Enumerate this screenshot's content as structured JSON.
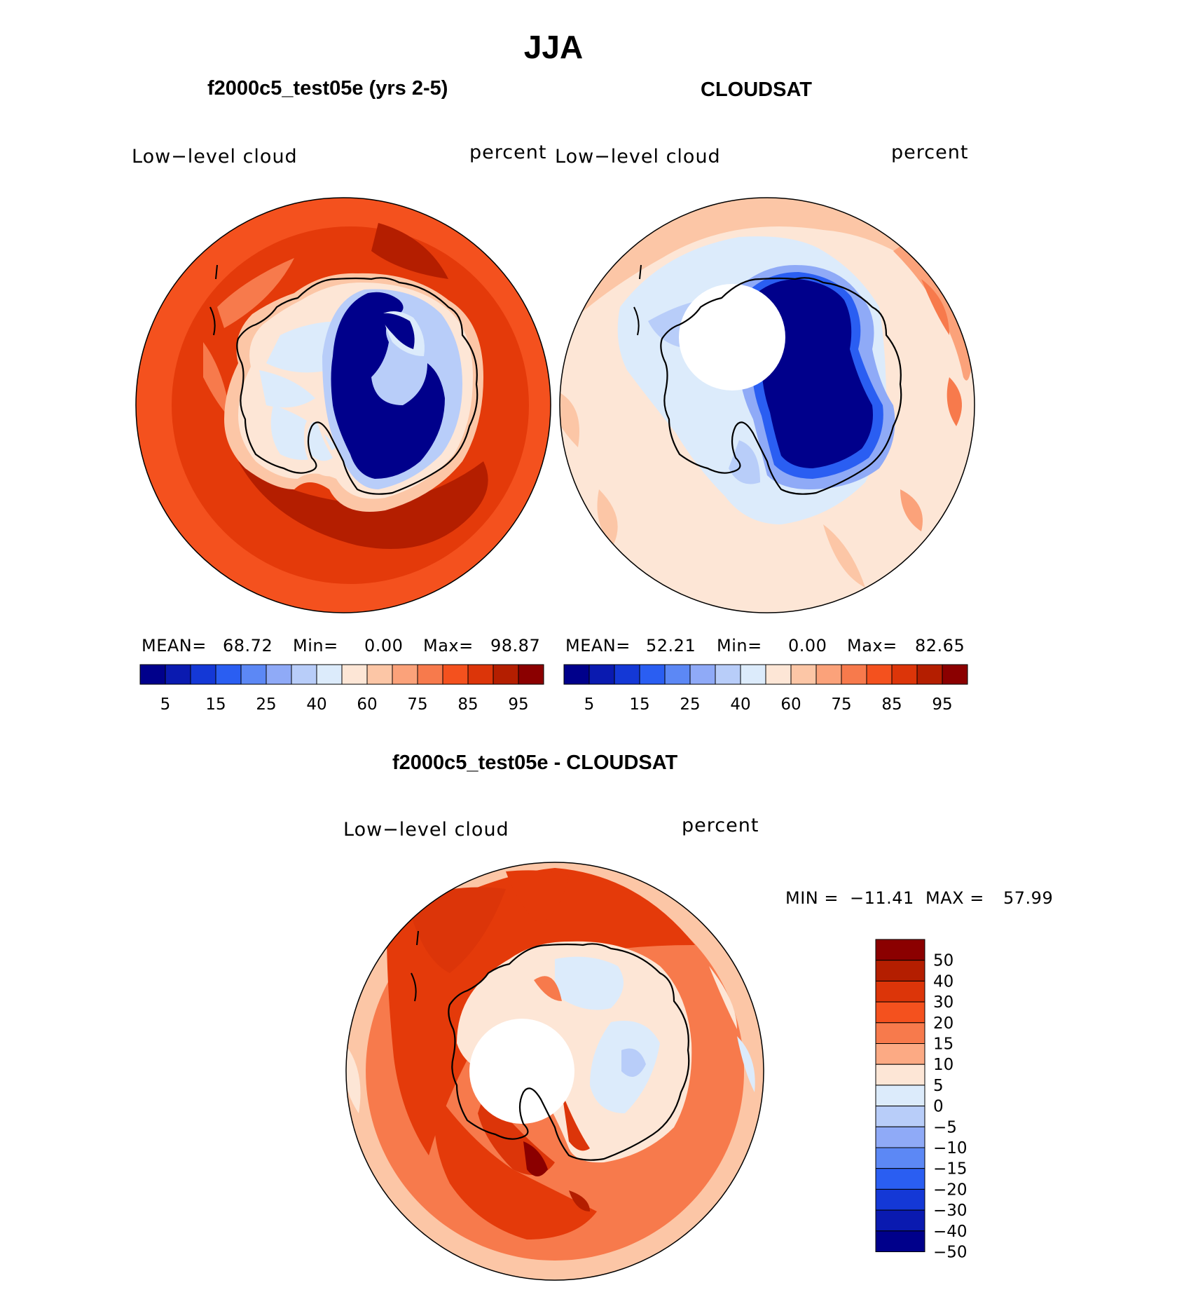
{
  "season": "JJA",
  "panels": [
    {
      "title": "f2000c5_test05e (yrs 2-5)",
      "left_label": "Low−level cloud",
      "right_label": "percent",
      "stats": {
        "mean_label": "MEAN=",
        "mean": "68.72",
        "min_label": "Min=",
        "min": "0.00",
        "max_label": "Max=",
        "max": "98.87"
      },
      "missing_pole": false
    },
    {
      "title": "CLOUDSAT",
      "left_label": "Low−level cloud",
      "right_label": "percent",
      "stats": {
        "mean_label": "MEAN=",
        "mean": "52.21",
        "min_label": "Min=",
        "min": "0.00",
        "max_label": "Max=",
        "max": "82.65"
      },
      "missing_pole": true
    }
  ],
  "colorbar_top": {
    "colors": [
      "#00008b",
      "#0a1ab0",
      "#1438d6",
      "#2a5ef2",
      "#5c88f5",
      "#8faaf7",
      "#b8cdf9",
      "#dcebfb",
      "#fde6d6",
      "#fcc6a6",
      "#fba27a",
      "#f77a4c",
      "#f4511e",
      "#dc3509",
      "#b41e00",
      "#8b0000"
    ],
    "labels": [
      "5",
      "15",
      "25",
      "40",
      "60",
      "75",
      "85",
      "95"
    ]
  },
  "diff_panel": {
    "title": "f2000c5_test05e - CLOUDSAT",
    "left_label": "Low−level cloud",
    "right_label": "percent",
    "minmax": {
      "min_label": "MIN =",
      "min": "−11.41",
      "max_label": "MAX =",
      "max": "57.99"
    },
    "missing_pole": true
  },
  "colorbar_diff": {
    "colors": [
      "#8b0000",
      "#b41e00",
      "#dc3509",
      "#f4511e",
      "#f77a4c",
      "#fcaa84",
      "#fde6d6",
      "#dcebfb",
      "#b8cdf9",
      "#8faaf7",
      "#5c88f5",
      "#2a5ef2",
      "#1438d6",
      "#0a1ab0",
      "#00008b"
    ],
    "labels": [
      "50",
      "40",
      "30",
      "20",
      "15",
      "10",
      "5",
      "0",
      "−5",
      "−10",
      "−15",
      "−20",
      "−30",
      "−40",
      "−50"
    ]
  },
  "colors": {
    "model_ocean": "#e43a0a",
    "obs_ocean": "#fde6d6",
    "diff_ocean": "#f05a28",
    "ice_core": "#00008b",
    "coast": "#000000"
  }
}
